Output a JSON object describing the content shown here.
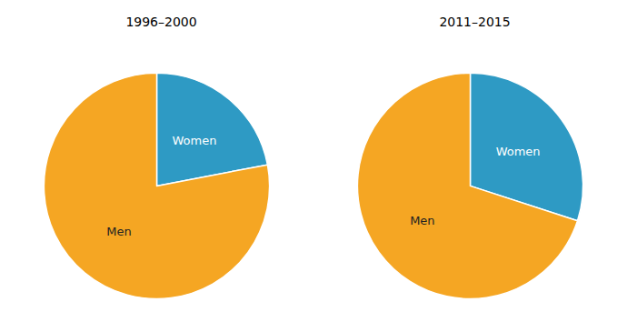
{
  "chart_data": [
    {
      "type": "pie",
      "title": "1996–2000",
      "categories": [
        "Women",
        "Men"
      ],
      "values": [
        22.0,
        78.0
      ],
      "colors": [
        "#2E9AC4",
        "#F5A623"
      ]
    },
    {
      "type": "pie",
      "title": "2011–2015",
      "categories": [
        "Women",
        "Men"
      ],
      "values": [
        30.0,
        70.0
      ],
      "colors": [
        "#2E9AC4",
        "#F5A623"
      ]
    }
  ]
}
